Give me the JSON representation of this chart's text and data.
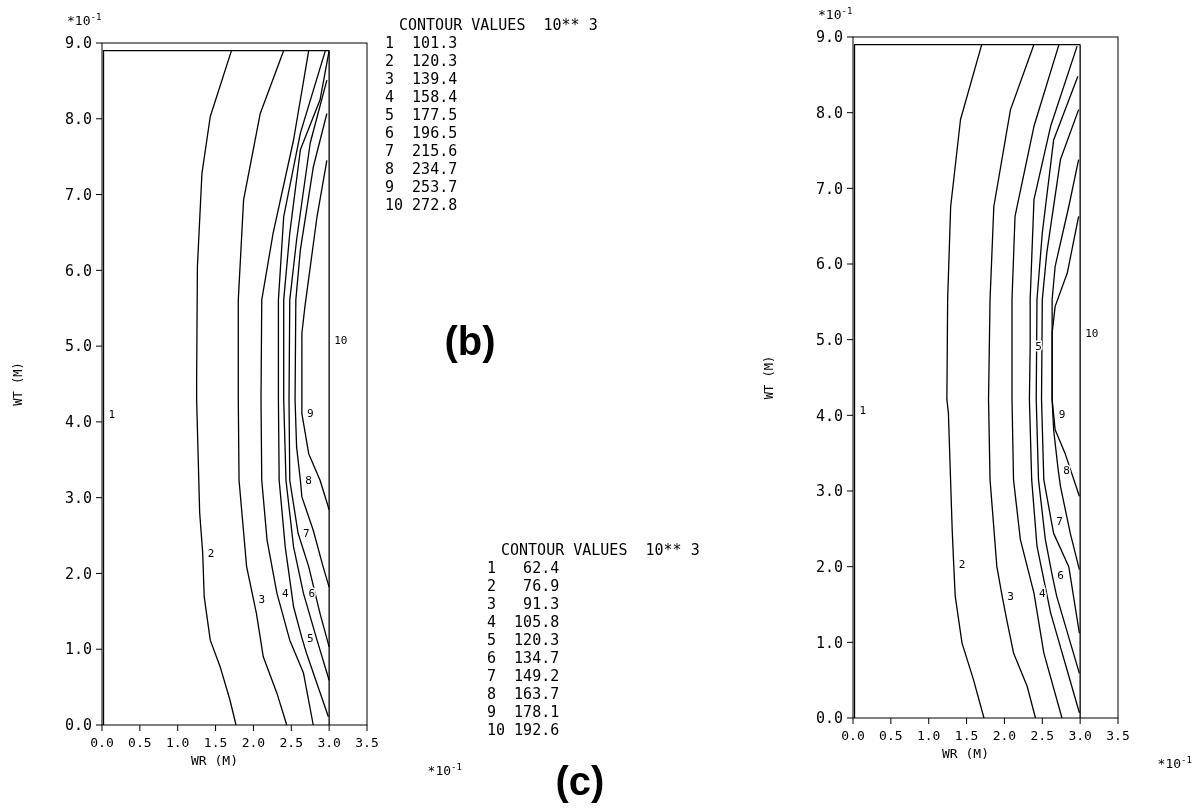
{
  "chart_data": [
    {
      "type": "line",
      "ylabel": "WT (M)",
      "xlabel": "WR (M)",
      "xlim": [
        0,
        3.5
      ],
      "ylim": [
        0,
        9
      ],
      "xticks": [
        {
          "value": 0,
          "label": "0.0"
        },
        {
          "value": 0.5,
          "label": "0.5"
        },
        {
          "value": 1,
          "label": "1.0"
        },
        {
          "value": 1.5,
          "label": "1.5"
        },
        {
          "value": 2,
          "label": "2.0"
        },
        {
          "value": 2.5,
          "label": "2.5"
        },
        {
          "value": 3,
          "label": "3.0"
        },
        {
          "value": 3.5,
          "label": "3.5"
        }
      ],
      "yticks": [
        {
          "value": 0,
          "label": "0.0"
        },
        {
          "value": 1,
          "label": "1.0"
        },
        {
          "value": 2,
          "label": "2.0"
        },
        {
          "value": 3,
          "label": "3.0"
        },
        {
          "value": 4,
          "label": "4.0"
        },
        {
          "value": 5,
          "label": "5.0"
        },
        {
          "value": 6,
          "label": "6.0"
        },
        {
          "value": 7,
          "label": "7.0"
        },
        {
          "value": 8,
          "label": "8.0"
        },
        {
          "value": 9,
          "label": "9.0"
        }
      ],
      "series": [
        {
          "color": "#000000",
          "x": [
            0.02,
            0.02,
            0.02,
            3.0
          ],
          "values": [
            0,
            4.1,
            8.9,
            8.9
          ]
        },
        {
          "color": "#000000",
          "x": [
            1.71,
            1.43,
            1.32,
            1.26,
            1.25,
            1.25,
            1.29,
            1.33,
            1.35,
            1.43,
            1.56,
            1.69,
            1.77
          ],
          "values": [
            8.9,
            8.03,
            7.28,
            6.05,
            4.55,
            4.29,
            2.8,
            2.27,
            1.69,
            1.12,
            0.77,
            0.33,
            0
          ]
        },
        {
          "color": "#000000",
          "x": [
            2.4,
            2.09,
            1.87,
            1.8,
            1.8,
            1.81,
            1.91,
            2.0,
            2.04,
            2.13,
            2.31,
            2.44
          ],
          "values": [
            8.9,
            8.07,
            6.93,
            5.61,
            4.29,
            3.23,
            2.09,
            1.66,
            1.47,
            0.9,
            0.42,
            0
          ]
        },
        {
          "color": "#000000",
          "x": [
            2.73,
            2.53,
            2.26,
            2.11,
            2.1,
            2.11,
            2.18,
            2.31,
            2.48,
            2.66,
            2.79
          ],
          "values": [
            8.9,
            7.72,
            6.49,
            5.61,
            4.29,
            3.23,
            2.44,
            1.74,
            1.12,
            0.69,
            0
          ]
        },
        {
          "color": "#000000",
          "x": [
            2.95,
            2.62,
            2.4,
            2.33,
            2.33,
            2.34,
            2.42,
            2.53,
            2.64,
            2.7,
            2.99
          ],
          "values": [
            8.9,
            7.81,
            6.71,
            5.61,
            4.29,
            3.23,
            2.35,
            1.56,
            1.15,
            0.95,
            0.11
          ]
        },
        {
          "color": "#000000",
          "x": [
            3.0,
            2.88,
            2.62,
            2.48,
            2.4,
            2.4,
            2.43,
            2.53,
            2.66,
            2.84,
            3.0
          ],
          "values": [
            8.9,
            8.25,
            7.59,
            6.49,
            5.61,
            4.29,
            3.23,
            2.35,
            1.74,
            1.12,
            0.59
          ]
        },
        {
          "color": "#000000",
          "x": [
            2.97,
            2.75,
            2.57,
            2.48,
            2.47,
            2.48,
            2.59,
            2.73,
            2.88,
            3.0
          ],
          "values": [
            8.51,
            7.68,
            6.4,
            5.61,
            4.29,
            3.23,
            2.53,
            2.09,
            1.47,
            1.03
          ]
        },
        {
          "color": "#000000",
          "x": [
            2.97,
            2.79,
            2.62,
            2.56,
            2.55,
            2.57,
            2.62,
            2.64,
            2.79,
            2.92,
            3.0
          ],
          "values": [
            8.07,
            7.36,
            6.27,
            5.61,
            4.29,
            3.67,
            3.23,
            3.01,
            2.57,
            2.09,
            1.82
          ]
        },
        {
          "color": "#000000",
          "x": [
            2.97,
            2.84,
            2.68,
            2.64,
            2.64,
            2.64,
            2.73,
            2.88,
            3.0
          ],
          "values": [
            7.45,
            6.71,
            5.52,
            5.17,
            4.29,
            4.11,
            3.58,
            3.23,
            2.84
          ]
        },
        {
          "color": "#000000",
          "x": [
            3.0,
            3.0,
            3.0
          ],
          "values": [
            0,
            5.08,
            8.9
          ]
        }
      ],
      "annotations": [
        {
          "text": "1",
          "x": 0.02,
          "y": 4.1
        },
        {
          "text": "2",
          "x": 1.33,
          "y": 2.27
        },
        {
          "text": "3",
          "x": 2.0,
          "y": 1.66
        },
        {
          "text": "4",
          "x": 2.31,
          "y": 1.74
        },
        {
          "text": "5",
          "x": 2.64,
          "y": 1.15
        },
        {
          "text": "6",
          "x": 2.66,
          "y": 1.74
        },
        {
          "text": "7",
          "x": 2.59,
          "y": 2.53
        },
        {
          "text": "8",
          "x": 2.62,
          "y": 3.23
        },
        {
          "text": "9",
          "x": 2.64,
          "y": 4.11
        },
        {
          "text": "10",
          "x": 3.0,
          "y": 5.08
        },
        "*10$^{-1}$",
        "*10$^{-1}$",
        "CONTOUR VALUES  10** 3",
        "1  101.3",
        "2  120.3",
        "3  139.4",
        "4  158.4",
        "5  177.5",
        "6  196.5",
        "7  215.6",
        "8  234.7",
        "9  253.7",
        "10 272.8",
        "(b)"
      ]
    },
    {
      "type": "line",
      "ylabel": "WT (M)",
      "xlabel": "WR (M)",
      "xlim": [
        0,
        3.5
      ],
      "ylim": [
        0,
        9
      ],
      "xticks": [
        {
          "value": 0,
          "label": "0.0"
        },
        {
          "value": 0.5,
          "label": "0.5"
        },
        {
          "value": 1,
          "label": "1.0"
        },
        {
          "value": 1.5,
          "label": "1.5"
        },
        {
          "value": 2,
          "label": "2.0"
        },
        {
          "value": 2.5,
          "label": "2.5"
        },
        {
          "value": 3,
          "label": "3.0"
        },
        {
          "value": 3.5,
          "label": "3.5"
        }
      ],
      "yticks": [
        {
          "value": 0,
          "label": "0.0"
        },
        {
          "value": 1,
          "label": "1.0"
        },
        {
          "value": 2,
          "label": "2.0"
        },
        {
          "value": 3,
          "label": "3.0"
        },
        {
          "value": 4,
          "label": "4.0"
        },
        {
          "value": 5,
          "label": "5.0"
        },
        {
          "value": 6,
          "label": "6.0"
        },
        {
          "value": 7,
          "label": "7.0"
        },
        {
          "value": 8,
          "label": "8.0"
        },
        {
          "value": 9,
          "label": "9.0"
        }
      ],
      "series": [
        {
          "color": "#000000",
          "x": [
            0.02,
            0.02,
            0.02,
            3.0
          ],
          "values": [
            0,
            4.07,
            8.9,
            8.9
          ]
        },
        {
          "color": "#000000",
          "x": [
            1.7,
            1.42,
            1.29,
            1.25,
            1.24,
            1.26,
            1.31,
            1.33,
            1.35,
            1.44,
            1.59,
            1.73
          ],
          "values": [
            8.9,
            7.91,
            6.76,
            5.53,
            4.21,
            4.03,
            2.49,
            2.03,
            1.61,
            0.99,
            0.51,
            0
          ]
        },
        {
          "color": "#000000",
          "x": [
            2.39,
            2.08,
            1.86,
            1.81,
            1.79,
            1.81,
            1.9,
            1.97,
            2.03,
            2.12,
            2.3,
            2.41
          ],
          "values": [
            8.9,
            8.04,
            6.76,
            5.53,
            4.21,
            3.15,
            2.0,
            1.61,
            1.3,
            0.86,
            0.42,
            0
          ]
        },
        {
          "color": "#000000",
          "x": [
            2.72,
            2.39,
            2.14,
            2.1,
            2.1,
            2.12,
            2.21,
            2.39,
            2.52,
            2.76
          ],
          "values": [
            8.9,
            7.82,
            6.63,
            5.53,
            4.21,
            3.15,
            2.36,
            1.65,
            0.86,
            0
          ]
        },
        {
          "color": "#000000",
          "x": [
            2.96,
            2.61,
            2.39,
            2.34,
            2.34,
            2.33,
            2.36,
            2.43,
            2.61,
            2.99
          ],
          "values": [
            8.88,
            7.82,
            6.85,
            5.53,
            4.91,
            4.21,
            3.15,
            2.27,
            1.39,
            0.07
          ]
        },
        {
          "color": "#000000",
          "x": [
            2.97,
            2.65,
            2.5,
            2.43,
            2.42,
            2.45,
            2.54,
            2.63,
            2.69,
            2.99
          ],
          "values": [
            8.48,
            7.64,
            6.41,
            5.53,
            4.21,
            3.15,
            2.36,
            1.89,
            1.61,
            0.59
          ]
        },
        {
          "color": "#000000",
          "x": [
            2.98,
            2.74,
            2.56,
            2.5,
            2.49,
            2.52,
            2.62,
            2.65,
            2.85,
            2.99
          ],
          "values": [
            8.04,
            7.38,
            6.15,
            5.53,
            4.21,
            3.15,
            2.6,
            2.44,
            2.0,
            1.12
          ]
        },
        {
          "color": "#000000",
          "x": [
            2.98,
            2.85,
            2.67,
            2.63,
            2.63,
            2.65,
            2.71,
            2.74,
            2.87,
            2.99
          ],
          "values": [
            7.38,
            6.76,
            5.97,
            5.53,
            4.21,
            3.81,
            3.28,
            3.06,
            2.44,
            1.96
          ]
        },
        {
          "color": "#000000",
          "x": [
            2.98,
            2.83,
            2.67,
            2.63,
            2.63,
            2.65,
            2.67,
            2.8,
            2.99
          ],
          "values": [
            6.63,
            5.88,
            5.44,
            5.09,
            4.21,
            4.01,
            3.81,
            3.5,
            2.93
          ]
        },
        {
          "color": "#000000",
          "x": [
            3.0,
            3.0,
            3.0
          ],
          "values": [
            0,
            5.09,
            8.9
          ]
        }
      ],
      "annotations": [
        {
          "text": "1",
          "x": 0.02,
          "y": 4.07
        },
        {
          "text": "2",
          "x": 1.33,
          "y": 2.03
        },
        {
          "text": "3",
          "x": 1.97,
          "y": 1.61
        },
        {
          "text": "4",
          "x": 2.39,
          "y": 1.65
        },
        {
          "text": "5",
          "x": 2.34,
          "y": 4.91
        },
        {
          "text": "6",
          "x": 2.63,
          "y": 1.89
        },
        {
          "text": "7",
          "x": 2.62,
          "y": 2.6
        },
        {
          "text": "8",
          "x": 2.71,
          "y": 3.28
        },
        {
          "text": "9",
          "x": 2.65,
          "y": 4.01
        },
        {
          "text": "10",
          "x": 3.0,
          "y": 5.09
        },
        "*10$^{-1}$",
        "*10$^{-1}$",
        "CONTOUR VALUES  10** 3",
        "1   62.4",
        "2   76.9",
        "3   91.3",
        "4  105.8",
        "5  120.3",
        "6  134.7",
        "7  149.2",
        "8  163.7",
        "9  178.1",
        "10 192.6",
        "(c)"
      ]
    }
  ]
}
